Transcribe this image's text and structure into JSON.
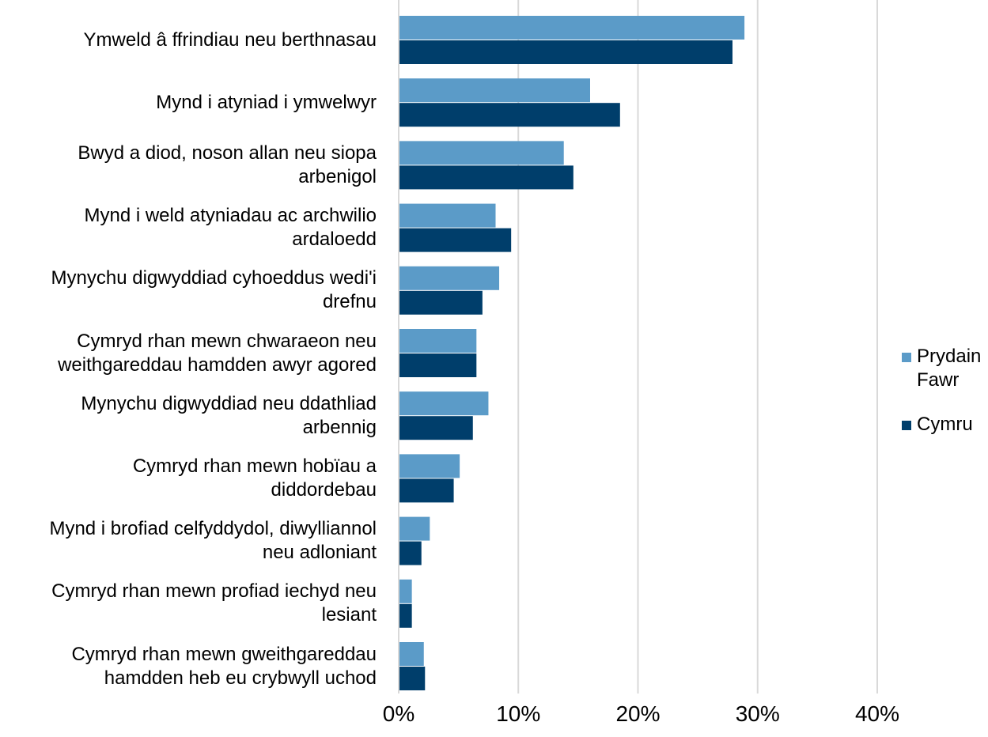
{
  "chart_data": {
    "type": "bar",
    "orientation": "horizontal",
    "categories": [
      "Ymweld â ffrindiau neu berthnasau",
      "Mynd i atyniad i ymwelwyr",
      "Bwyd a diod, noson allan neu siopa arbenigol",
      "Mynd i weld atyniadau ac archwilio ardaloedd",
      "Mynychu digwyddiad cyhoeddus wedi'i drefnu",
      "Cymryd rhan mewn chwaraeon neu weithgareddau hamdden awyr agored",
      "Mynychu digwyddiad neu ddathliad arbennig",
      "Cymryd rhan mewn hobïau a diddordebau",
      "Mynd i brofiad celfyddydol, diwylliannol neu adloniant",
      "Cymryd rhan mewn profiad iechyd neu lesiant",
      "Cymryd rhan mewn gweithgareddau hamdden heb eu crybwyll uchod"
    ],
    "category_lines": [
      [
        "Ymweld â ffrindiau neu berthnasau"
      ],
      [
        "Mynd i atyniad i ymwelwyr"
      ],
      [
        "Bwyd a diod, noson allan neu siopa",
        "arbenigol"
      ],
      [
        "Mynd i weld atyniadau ac archwilio",
        "ardaloedd"
      ],
      [
        "Mynychu digwyddiad cyhoeddus wedi'i",
        "drefnu"
      ],
      [
        "Cymryd rhan mewn chwaraeon neu",
        "weithgareddau hamdden awyr agored"
      ],
      [
        "Mynychu digwyddiad neu ddathliad",
        "arbennig"
      ],
      [
        "Cymryd rhan mewn hobïau a",
        "diddordebau"
      ],
      [
        "Mynd i brofiad celfyddydol, diwylliannol",
        "neu adloniant"
      ],
      [
        "Cymryd rhan mewn profiad iechyd neu",
        "lesiant"
      ],
      [
        "Cymryd rhan mewn gweithgareddau",
        "hamdden heb eu crybwyll uchod"
      ]
    ],
    "series": [
      {
        "name": "Prydain Fawr",
        "legend_lines": [
          "Prydain",
          "Fawr"
        ],
        "color": "#5b9bc8",
        "values": [
          28.9,
          16.0,
          13.8,
          8.1,
          8.4,
          6.5,
          7.5,
          5.1,
          2.6,
          1.1,
          2.1
        ]
      },
      {
        "name": "Cymru",
        "legend_lines": [
          "Cymru"
        ],
        "color": "#003e6b",
        "values": [
          27.9,
          18.5,
          14.6,
          9.4,
          7.0,
          6.5,
          6.2,
          4.6,
          1.9,
          1.1,
          2.2
        ]
      }
    ],
    "xlim": [
      0,
      40
    ],
    "xticks": [
      0,
      10,
      20,
      30,
      40
    ],
    "xtick_labels": [
      "0%",
      "10%",
      "20%",
      "30%",
      "40%"
    ],
    "grid": "vertical",
    "legend_position": "right",
    "title": "",
    "xlabel": "",
    "ylabel": ""
  }
}
